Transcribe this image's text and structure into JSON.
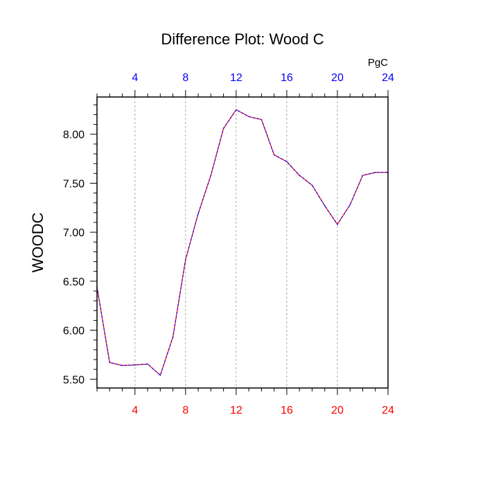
{
  "chart_data": {
    "type": "line",
    "title": "Difference Plot: Wood C",
    "units": "PgC",
    "ylabel": "WOODC",
    "xlabel": "",
    "xlim": [
      1,
      24
    ],
    "ylim": [
      5.41,
      8.38
    ],
    "x_ticks": [
      4,
      8,
      12,
      16,
      20,
      24
    ],
    "y_ticks": [
      5.5,
      6.0,
      6.5,
      7.0,
      7.5,
      8.0
    ],
    "y_tick_labels": [
      "5.50",
      "6.00",
      "6.50",
      "7.00",
      "7.50",
      "8.00"
    ],
    "grid": "vertical-dashed",
    "colors": {
      "bottom_axis_labels": "#ff0000",
      "top_axis_labels": "#0000ff",
      "series_a": "#ff0000",
      "series_b": "#0000ff",
      "gridline": "#aaaaaa"
    },
    "series": [
      {
        "x": [
          1,
          2,
          3,
          4,
          5,
          6,
          7,
          8,
          9,
          10,
          11,
          12,
          13,
          14,
          15,
          16,
          17,
          18,
          19,
          20,
          21,
          22,
          23,
          24
        ],
        "values": [
          6.44,
          5.67,
          5.64,
          5.645,
          5.655,
          5.54,
          5.93,
          6.72,
          7.19,
          7.58,
          8.06,
          8.25,
          8.18,
          8.15,
          7.79,
          7.72,
          7.58,
          7.48,
          7.27,
          7.08,
          7.28,
          7.58,
          7.61,
          7.61
        ]
      }
    ]
  }
}
